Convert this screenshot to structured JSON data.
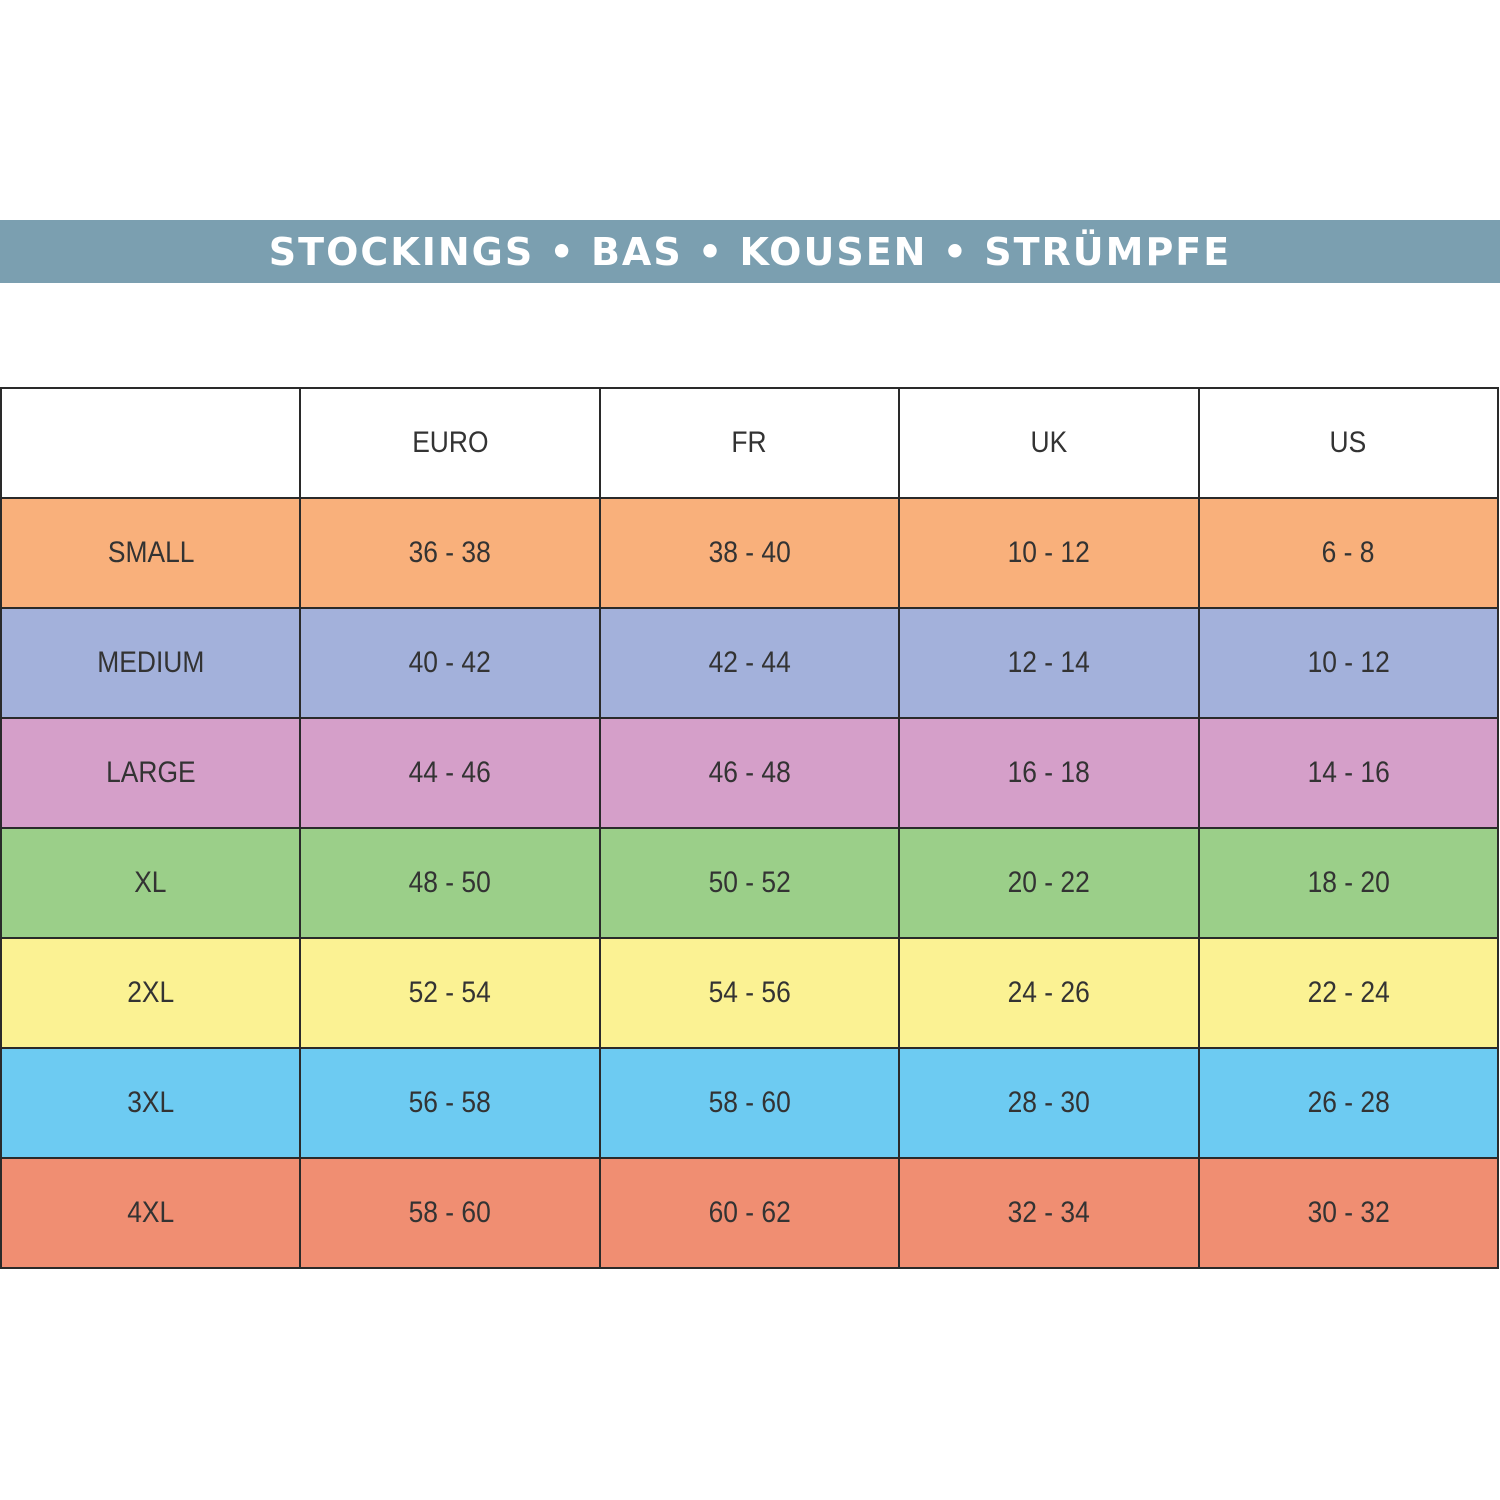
{
  "banner": {
    "title": "STOCKINGS • BAS • KOUSEN • STRÜMPFE",
    "color": "#7b9fb0"
  },
  "table": {
    "columns": [
      "",
      "EURO",
      "FR",
      "UK",
      "US"
    ],
    "rows": [
      {
        "size": "SMALL",
        "euro": "36 - 38",
        "fr": "38 - 40",
        "uk": "10 - 12",
        "us": "6 - 8",
        "color": "#f9b07b"
      },
      {
        "size": "MEDIUM",
        "euro": "40 - 42",
        "fr": "42 - 44",
        "uk": "12 - 14",
        "us": "10 - 12",
        "color": "#a3b1db"
      },
      {
        "size": "LARGE",
        "euro": "44 - 46",
        "fr": "46 - 48",
        "uk": "16 - 18",
        "us": "14 - 16",
        "color": "#d59fc9"
      },
      {
        "size": "XL",
        "euro": "48 - 50",
        "fr": "50 - 52",
        "uk": "20 - 22",
        "us": "18 - 20",
        "color": "#9bcf89"
      },
      {
        "size": "2XL",
        "euro": "52 - 54",
        "fr": "54 - 56",
        "uk": "24 - 26",
        "us": "22 - 24",
        "color": "#fbf293"
      },
      {
        "size": "3XL",
        "euro": "56 - 58",
        "fr": "58 - 60",
        "uk": "28 - 30",
        "us": "26 - 28",
        "color": "#6dcbf2"
      },
      {
        "size": "4XL",
        "euro": "58 - 60",
        "fr": "60 - 62",
        "uk": "32 - 34",
        "us": "30 - 32",
        "color": "#f08e72"
      }
    ]
  }
}
